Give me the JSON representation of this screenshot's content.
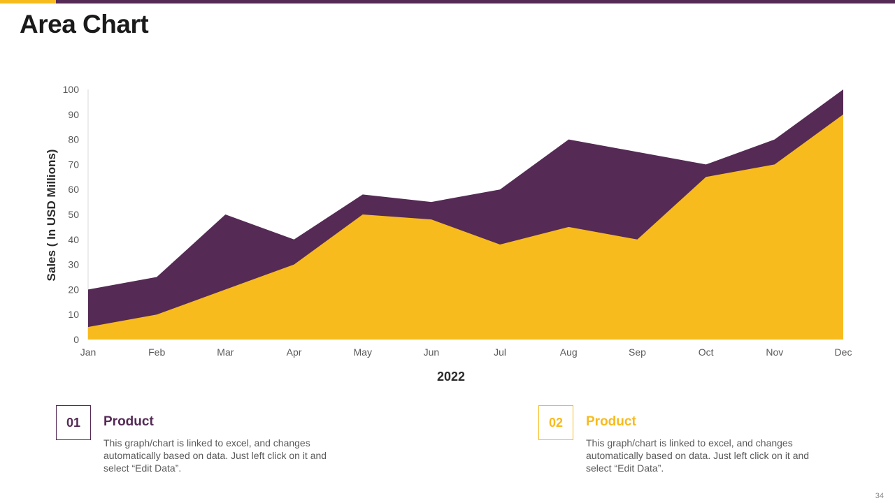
{
  "slide": {
    "title": "Area Chart",
    "page_number": "34"
  },
  "colors": {
    "purple": "#552a55",
    "yellow": "#f7bb1e"
  },
  "cards": [
    {
      "number": "01",
      "heading": "Product",
      "body": "This graph/chart is linked to excel, and changes automatically based on data. Just left click on it and select “Edit Data”."
    },
    {
      "number": "02",
      "heading": "Product",
      "body": "This graph/chart is linked to excel, and changes automatically based on data. Just left click on it and select “Edit Data”."
    }
  ],
  "chart_data": {
    "type": "area",
    "xlabel": "2022",
    "ylabel": "Sales  ( In USD Millions)",
    "categories": [
      "Jan",
      "Feb",
      "Mar",
      "Apr",
      "May",
      "Jun",
      "Jul",
      "Aug",
      "Sep",
      "Oct",
      "Nov",
      "Dec"
    ],
    "ylim": [
      0,
      100
    ],
    "yticks": [
      0,
      10,
      20,
      30,
      40,
      50,
      60,
      70,
      80,
      90,
      100
    ],
    "grid": false,
    "legend": "none",
    "series": [
      {
        "values": [
          20,
          25,
          50,
          40,
          58,
          55,
          60,
          80,
          75,
          70,
          80,
          100
        ],
        "color": "#552a55"
      },
      {
        "values": [
          5,
          10,
          20,
          30,
          50,
          48,
          38,
          45,
          40,
          65,
          70,
          90
        ],
        "color": "#f7bb1e"
      }
    ]
  }
}
